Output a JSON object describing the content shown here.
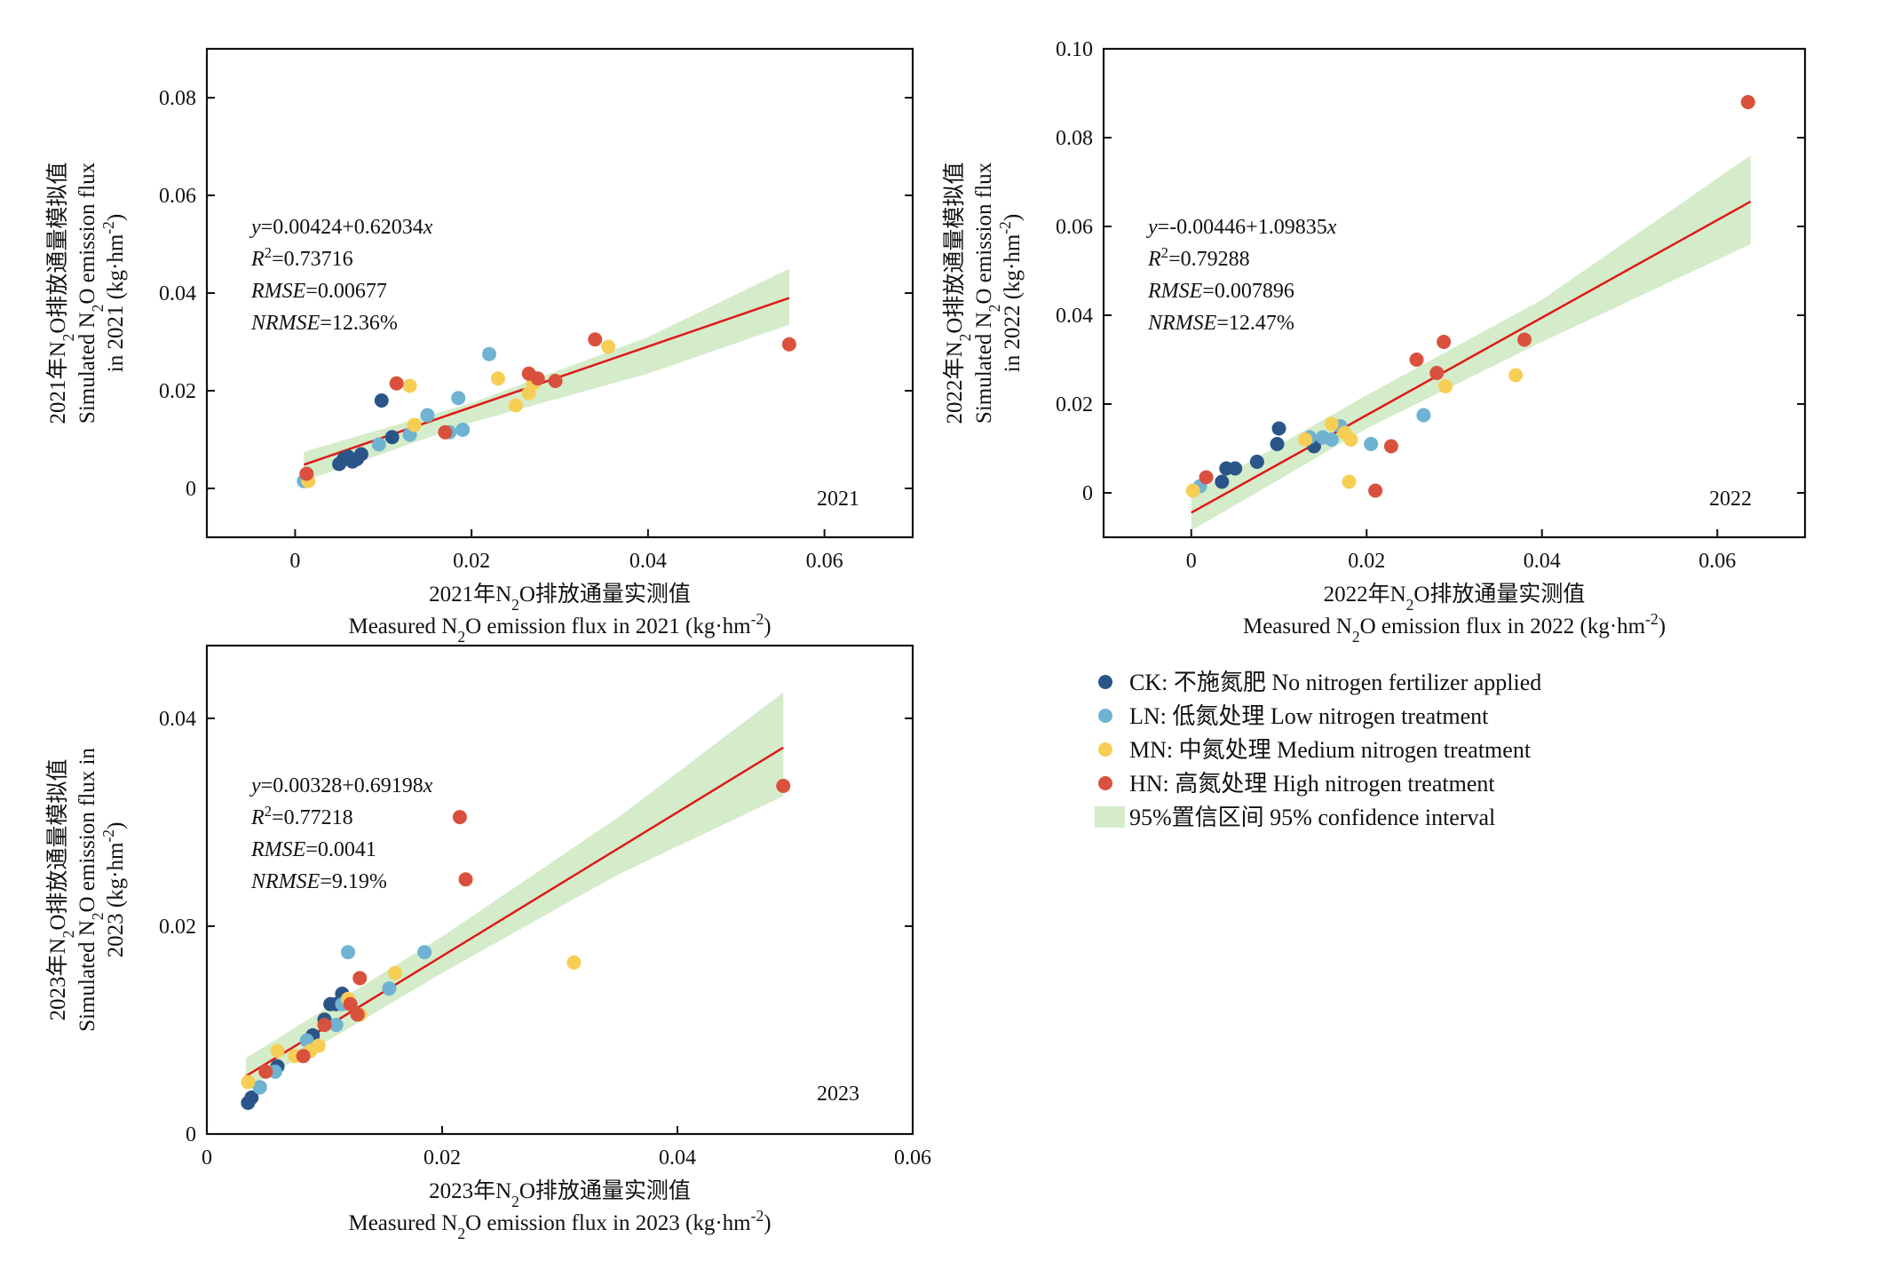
{
  "colors": {
    "CK": "#2a5588",
    "LN": "#6fb2d2",
    "MN": "#f7ce55",
    "HN": "#d9513d",
    "fit": "#e01818",
    "ci": "#d4ecca"
  },
  "legend": [
    {
      "key": "CK",
      "label": "CK: 不施氮肥 No nitrogen fertilizer applied"
    },
    {
      "key": "LN",
      "label": "LN: 低氮处理 Low nitrogen treatment"
    },
    {
      "key": "MN",
      "label": "MN: 中氮处理 Medium nitrogen treatment"
    },
    {
      "key": "HN",
      "label": "HN: 高氮处理 High nitrogen treatment"
    },
    {
      "key": "CI",
      "label": "95%置信区间 95% confidence interval"
    }
  ],
  "chart_data": [
    {
      "type": "scatter",
      "year_label": "2021",
      "xlabel_cn": "2021年N₂O排放通量实测值",
      "xlabel_en": "Measured N₂O emission flux in 2021 (kg·hm⁻²)",
      "ylabel_cn": "2021年N₂O排放通量模拟值",
      "ylabel_en1": "Simulated N₂O emission flux",
      "ylabel_en2": "in 2021 (kg·hm⁻²)",
      "xlim": [
        -0.01,
        0.07
      ],
      "ylim": [
        -0.01,
        0.09
      ],
      "xticks": [
        0,
        0.02,
        0.04,
        0.06
      ],
      "xtick_labels": [
        "0",
        "0.02",
        "0.04",
        "0.06"
      ],
      "yticks": [
        0,
        0.02,
        0.04,
        0.06,
        0.08
      ],
      "ytick_labels": [
        "0",
        "0.02",
        "0.04",
        "0.06",
        "0.08"
      ],
      "stats": {
        "eq": "y=0.00424+0.62034x",
        "r2": "R²=0.73716",
        "rmse": "RMSE=0.00677",
        "nrmse": "NRMSE=12.36%"
      },
      "fit": {
        "intercept": 0.00424,
        "slope": 0.62034,
        "x_range": [
          0.001,
          0.056
        ]
      },
      "ci": {
        "x": [
          0.001,
          0.02,
          0.04,
          0.056
        ],
        "lower": [
          0.0015,
          0.0135,
          0.0235,
          0.0335
        ],
        "upper": [
          0.0075,
          0.0175,
          0.031,
          0.045
        ]
      },
      "series": [
        {
          "name": "CK",
          "x": [
            0.005,
            0.0055,
            0.006,
            0.0065,
            0.007,
            0.0075,
            0.0098,
            0.011
          ],
          "y": [
            0.005,
            0.006,
            0.0065,
            0.0055,
            0.006,
            0.007,
            0.018,
            0.0105
          ]
        },
        {
          "name": "LN",
          "x": [
            0.001,
            0.0095,
            0.013,
            0.015,
            0.0175,
            0.0185,
            0.019,
            0.022
          ],
          "y": [
            0.0015,
            0.009,
            0.011,
            0.015,
            0.0115,
            0.0185,
            0.012,
            0.0275
          ]
        },
        {
          "name": "MN",
          "x": [
            0.0015,
            0.013,
            0.0135,
            0.023,
            0.025,
            0.0265,
            0.027,
            0.0355
          ],
          "y": [
            0.0015,
            0.021,
            0.013,
            0.0225,
            0.017,
            0.0195,
            0.0215,
            0.029
          ]
        },
        {
          "name": "HN",
          "x": [
            0.0013,
            0.0115,
            0.017,
            0.0265,
            0.0275,
            0.0295,
            0.034,
            0.056
          ],
          "y": [
            0.003,
            0.0215,
            0.0115,
            0.0235,
            0.0225,
            0.022,
            0.0305,
            0.0295
          ]
        }
      ]
    },
    {
      "type": "scatter",
      "year_label": "2022",
      "xlabel_cn": "2022年N₂O排放通量实测值",
      "xlabel_en": "Measured N₂O emission flux in 2022 (kg·hm⁻²)",
      "ylabel_cn": "2022年N₂O排放通量模拟值",
      "ylabel_en1": "Simulated N₂O emission flux",
      "ylabel_en2": "in 2022 (kg·hm⁻²)",
      "xlim": [
        -0.01,
        0.07
      ],
      "ylim": [
        -0.01,
        0.1
      ],
      "xticks": [
        0,
        0.02,
        0.04,
        0.06
      ],
      "xtick_labels": [
        "0",
        "0.02",
        "0.04",
        "0.06"
      ],
      "yticks": [
        0,
        0.02,
        0.04,
        0.06,
        0.08,
        0.1
      ],
      "ytick_labels": [
        "0",
        "0.02",
        "0.04",
        "0.06",
        "0.08",
        "0.10"
      ],
      "stats": {
        "eq": "y=-0.00446+1.09835x",
        "r2": "R²=0.79288",
        "rmse": "RMSE=0.007896",
        "nrmse": "NRMSE=12.47%"
      },
      "fit": {
        "intercept": -0.00446,
        "slope": 1.09835,
        "x_range": [
          0,
          0.0638
        ]
      },
      "ci": {
        "x": [
          0,
          0.02,
          0.04,
          0.0638
        ],
        "lower": [
          -0.0085,
          0.0145,
          0.034,
          0.056
        ],
        "upper": [
          -0.0005,
          0.022,
          0.0435,
          0.076
        ]
      },
      "series": [
        {
          "name": "CK",
          "x": [
            0.0035,
            0.004,
            0.005,
            0.0075,
            0.0098,
            0.01,
            0.014
          ],
          "y": [
            0.0025,
            0.0055,
            0.0055,
            0.007,
            0.011,
            0.0145,
            0.0105
          ]
        },
        {
          "name": "LN",
          "x": [
            0.001,
            0.0135,
            0.015,
            0.016,
            0.017,
            0.0205,
            0.0265
          ],
          "y": [
            0.0015,
            0.0125,
            0.0125,
            0.012,
            0.015,
            0.011,
            0.0175
          ]
        },
        {
          "name": "MN",
          "x": [
            0.0002,
            0.013,
            0.016,
            0.0175,
            0.018,
            0.0182,
            0.029,
            0.037
          ],
          "y": [
            0.0005,
            0.012,
            0.0155,
            0.0135,
            0.0025,
            0.012,
            0.024,
            0.0265
          ]
        },
        {
          "name": "HN",
          "x": [
            0.0017,
            0.021,
            0.0228,
            0.0257,
            0.028,
            0.0288,
            0.038,
            0.0635
          ],
          "y": [
            0.0035,
            0.0005,
            0.0105,
            0.03,
            0.027,
            0.034,
            0.0345,
            0.088
          ]
        }
      ]
    },
    {
      "type": "scatter",
      "year_label": "2023",
      "xlabel_cn": "2023年N₂O排放通量实测值",
      "xlabel_en": "Measured N₂O emission flux in 2023  (kg·hm⁻²)",
      "ylabel_cn": "2023年N₂O排放通量模拟值",
      "ylabel_en1": "Simulated N₂O emission flux in",
      "ylabel_en2": "2023 (kg·hm⁻²)",
      "xlim": [
        0,
        0.06
      ],
      "ylim": [
        0,
        0.047
      ],
      "xticks": [
        0,
        0.02,
        0.04,
        0.06
      ],
      "xtick_labels": [
        "0",
        "0.02",
        "0.04",
        "0.06"
      ],
      "yticks": [
        0,
        0.02,
        0.04
      ],
      "ytick_labels": [
        "0",
        "0.02",
        "0.04"
      ],
      "stats": {
        "eq": "y=0.00328+0.69198x",
        "r2": "R²=0.77218",
        "rmse": "RMSE=0.0041",
        "nrmse": "NRMSE=9.19%"
      },
      "fit": {
        "intercept": 0.00328,
        "slope": 0.69198,
        "x_range": [
          0.0033,
          0.049
        ]
      },
      "ci": {
        "x": [
          0.0033,
          0.02,
          0.035,
          0.049
        ],
        "lower": [
          0.0043,
          0.0155,
          0.025,
          0.0325
        ],
        "upper": [
          0.0073,
          0.019,
          0.0305,
          0.0425
        ]
      },
      "series": [
        {
          "name": "CK",
          "x": [
            0.0035,
            0.0038,
            0.0045,
            0.006,
            0.009,
            0.01,
            0.0105,
            0.011,
            0.0115
          ],
          "y": [
            0.003,
            0.0035,
            0.0045,
            0.0065,
            0.0095,
            0.011,
            0.0125,
            0.0125,
            0.0135
          ]
        },
        {
          "name": "LN",
          "x": [
            0.0045,
            0.0058,
            0.0085,
            0.011,
            0.0115,
            0.012,
            0.013,
            0.0155,
            0.0185
          ],
          "y": [
            0.0045,
            0.006,
            0.009,
            0.0105,
            0.0125,
            0.0175,
            0.0115,
            0.014,
            0.0175
          ]
        },
        {
          "name": "MN",
          "x": [
            0.0035,
            0.006,
            0.0075,
            0.0088,
            0.0095,
            0.012,
            0.013,
            0.016,
            0.0312
          ],
          "y": [
            0.005,
            0.008,
            0.0075,
            0.008,
            0.0085,
            0.013,
            0.0115,
            0.0155,
            0.0165
          ]
        },
        {
          "name": "HN",
          "x": [
            0.005,
            0.0082,
            0.01,
            0.0122,
            0.0128,
            0.013,
            0.0215,
            0.022,
            0.049
          ],
          "y": [
            0.006,
            0.0075,
            0.0105,
            0.0125,
            0.0115,
            0.015,
            0.0305,
            0.0245,
            0.0335
          ]
        }
      ]
    }
  ]
}
